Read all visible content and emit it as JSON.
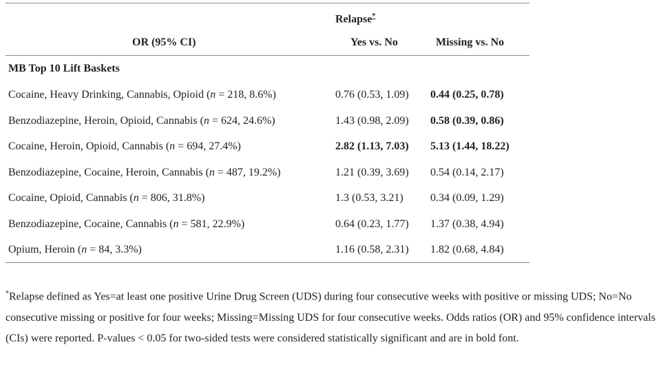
{
  "header": {
    "group": "Relapse",
    "group_marker": "*",
    "col1": "OR (95% CI)",
    "col2": "Yes vs. No",
    "col3": "Missing vs. No"
  },
  "section": "MB Top 10 Lift Baskets",
  "rows": [
    {
      "label": [
        "Cocaine, Heavy Drinking, Cannabis, Opioid (",
        "n",
        " = 218, 8.6%)"
      ],
      "yes": {
        "text": "0.76 (0.53, 1.09)",
        "bold": false
      },
      "missing": {
        "text": "0.44 (0.25, 0.78)",
        "bold": true
      }
    },
    {
      "label": [
        "Benzodiazepine, Heroin, Opioid, Cannabis (",
        "n",
        " = 624, 24.6%)"
      ],
      "yes": {
        "text": "1.43 (0.98, 2.09)",
        "bold": false
      },
      "missing": {
        "text": "0.58 (0.39, 0.86)",
        "bold": true
      }
    },
    {
      "label": [
        "Cocaine, Heroin, Opioid, Cannabis (",
        "n",
        " = 694, 27.4%)"
      ],
      "yes": {
        "text": "2.82 (1.13, 7.03)",
        "bold": true
      },
      "missing": {
        "text": "5.13 (1.44, 18.22)",
        "bold": true
      }
    },
    {
      "label": [
        "Benzodiazepine, Cocaine, Heroin, Cannabis (",
        "n",
        " = 487, 19.2%)"
      ],
      "yes": {
        "text": "1.21 (0.39, 3.69)",
        "bold": false
      },
      "missing": {
        "text": "0.54 (0.14, 2.17)",
        "bold": false
      }
    },
    {
      "label": [
        "Cocaine, Opioid, Cannabis (",
        "n",
        " = 806, 31.8%)"
      ],
      "yes": {
        "text": "1.3 (0.53, 3.21)",
        "bold": false
      },
      "missing": {
        "text": "0.34 (0.09, 1.29)",
        "bold": false
      }
    },
    {
      "label": [
        "Benzodiazepine, Cocaine, Cannabis (",
        "n",
        " = 581, 22.9%)"
      ],
      "yes": {
        "text": "0.64 (0.23, 1.77)",
        "bold": false
      },
      "missing": {
        "text": "1.37 (0.38, 4.94)",
        "bold": false
      }
    },
    {
      "label": [
        "Opium, Heroin (",
        "n",
        " = 84, 3.3%)"
      ],
      "yes": {
        "text": "1.16 (0.58, 2.31)",
        "bold": false
      },
      "missing": {
        "text": "1.82 (0.68, 4.84)",
        "bold": false
      }
    }
  ],
  "footnote": {
    "marker": "*",
    "text": "Relapse defined as Yes=at least one positive Urine Drug Screen (UDS) during four consecutive weeks with positive or missing UDS; No=No consecutive missing or positive for four weeks; Missing=Missing UDS for four consecutive weeks. Odds ratios (OR) and 95% confidence intervals (CIs) were reported. P-values < 0.05 for two-sided tests were considered statistically significant and are in bold font."
  }
}
